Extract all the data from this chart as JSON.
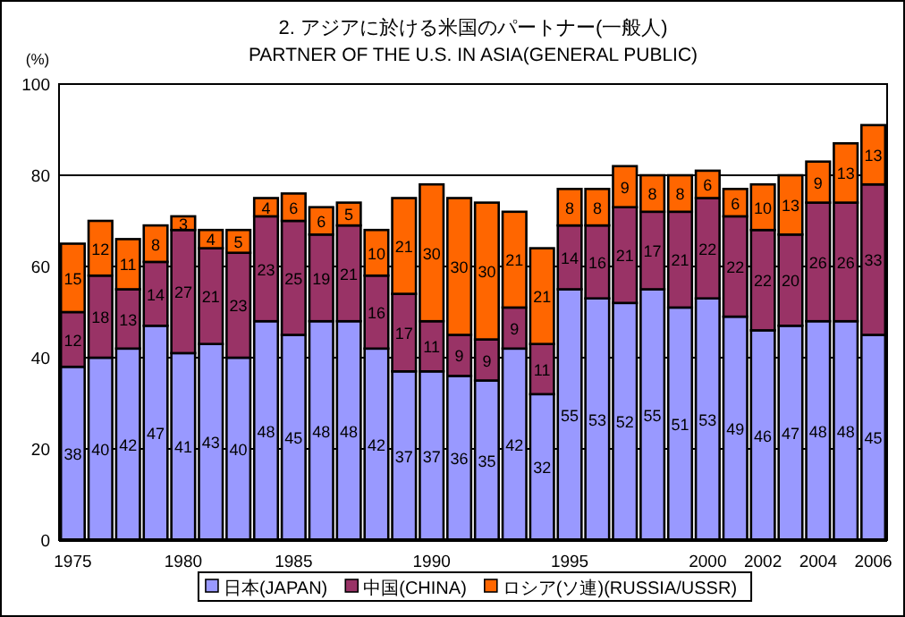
{
  "chart_data": {
    "type": "bar",
    "title": "2. アジアに於ける米国のパートナー(一般人)",
    "subtitle": "PARTNER OF THE U.S. IN ASIA(GENERAL PUBLIC)",
    "ylabel": "(%)",
    "categories": [
      "1975",
      null,
      null,
      null,
      "1980",
      null,
      null,
      null,
      "1985",
      null,
      null,
      null,
      null,
      "1990",
      null,
      null,
      null,
      null,
      "1995",
      null,
      null,
      null,
      null,
      "2000",
      null,
      "2002",
      null,
      "2004",
      null,
      "2006"
    ],
    "stacked": true,
    "series": [
      {
        "name": "日本(JAPAN)",
        "color": "#9999ff",
        "values": [
          38,
          40,
          42,
          47,
          41,
          43,
          40,
          48,
          45,
          48,
          48,
          42,
          37,
          37,
          36,
          35,
          42,
          32,
          55,
          53,
          52,
          55,
          51,
          53,
          49,
          46,
          47,
          48,
          48,
          45
        ]
      },
      {
        "name": "中国(CHINA)",
        "color": "#993366",
        "values": [
          12,
          18,
          13,
          14,
          27,
          21,
          23,
          23,
          25,
          19,
          21,
          16,
          17,
          11,
          9,
          9,
          9,
          11,
          14,
          16,
          21,
          17,
          21,
          22,
          22,
          22,
          20,
          26,
          26,
          33
        ]
      },
      {
        "name": "ロシア(ソ連)(RUSSIA/USSR)",
        "color": "#ff6600",
        "values": [
          15,
          12,
          11,
          8,
          3,
          4,
          5,
          4,
          6,
          6,
          5,
          10,
          21,
          30,
          30,
          30,
          21,
          21,
          8,
          8,
          9,
          8,
          8,
          6,
          6,
          10,
          13,
          9,
          13,
          13
        ]
      }
    ],
    "ylim": [
      0,
      100
    ],
    "yticks": [
      0,
      20,
      40,
      60,
      80,
      100
    ],
    "grid": "y",
    "legend": "bottom",
    "data_labels": true
  }
}
